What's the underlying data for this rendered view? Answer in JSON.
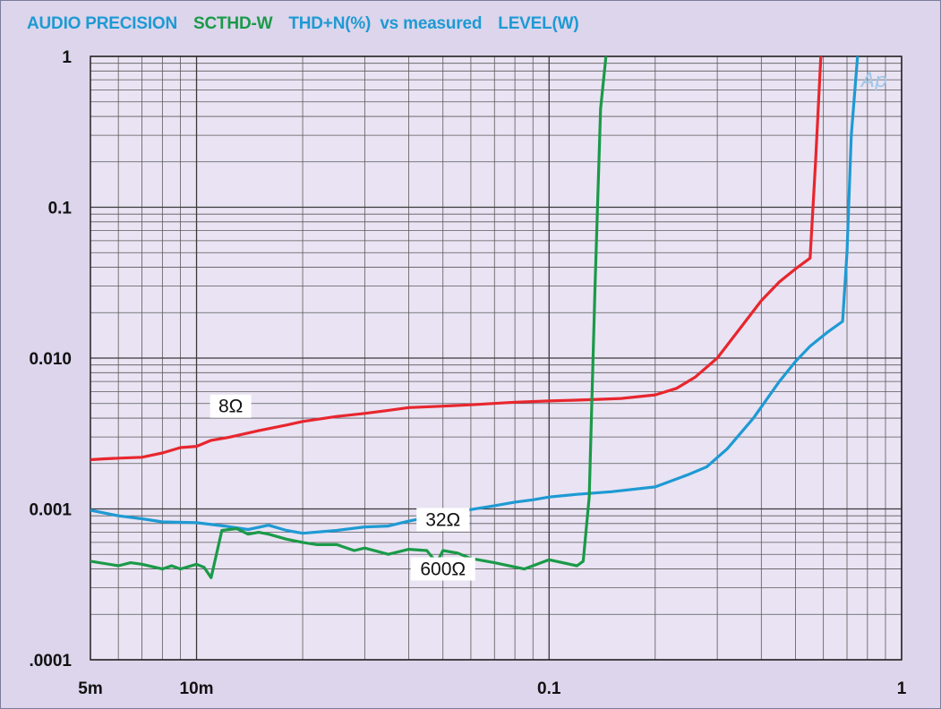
{
  "title": {
    "part1": "AUDIO PRECISION",
    "part2": "SCTHD-W",
    "part3": "THD+N(%)  vs measured",
    "part4": "LEVEL(W)",
    "color_main": "#1e9ad3",
    "color_accent": "#1a9a48"
  },
  "watermark": "Ap",
  "chart_data": {
    "type": "line",
    "xscale": "log",
    "yscale": "log",
    "xlim": [
      0.005,
      1
    ],
    "ylim": [
      0.0001,
      1
    ],
    "x_tick_labels": [
      {
        "value": 0.005,
        "label": "5m"
      },
      {
        "value": 0.01,
        "label": "10m"
      },
      {
        "value": 0.1,
        "label": "0.1"
      },
      {
        "value": 1,
        "label": "1"
      }
    ],
    "y_tick_labels": [
      {
        "value": 1,
        "label": "1"
      },
      {
        "value": 0.1,
        "label": "0.1"
      },
      {
        "value": 0.01,
        "label": "0.010"
      },
      {
        "value": 0.001,
        "label": "0.001"
      },
      {
        "value": 0.0001,
        "label": ".0001"
      }
    ],
    "grid": true,
    "series": [
      {
        "name": "8Ω",
        "color": "#e8262e",
        "points": [
          [
            0.005,
            0.00212
          ],
          [
            0.0055,
            0.00215
          ],
          [
            0.006,
            0.00217
          ],
          [
            0.007,
            0.0022
          ],
          [
            0.008,
            0.00235
          ],
          [
            0.009,
            0.00255
          ],
          [
            0.01,
            0.0026
          ],
          [
            0.011,
            0.00285
          ],
          [
            0.0125,
            0.003
          ],
          [
            0.015,
            0.0033
          ],
          [
            0.018,
            0.0036
          ],
          [
            0.02,
            0.0038
          ],
          [
            0.025,
            0.0041
          ],
          [
            0.03,
            0.0043
          ],
          [
            0.035,
            0.0045
          ],
          [
            0.04,
            0.0047
          ],
          [
            0.05,
            0.0048
          ],
          [
            0.06,
            0.0049
          ],
          [
            0.08,
            0.0051
          ],
          [
            0.1,
            0.0052
          ],
          [
            0.13,
            0.0053
          ],
          [
            0.16,
            0.0054
          ],
          [
            0.2,
            0.0057
          ],
          [
            0.23,
            0.0063
          ],
          [
            0.26,
            0.0075
          ],
          [
            0.3,
            0.01
          ],
          [
            0.35,
            0.016
          ],
          [
            0.4,
            0.024
          ],
          [
            0.45,
            0.032
          ],
          [
            0.5,
            0.039
          ],
          [
            0.55,
            0.046
          ],
          [
            0.57,
            0.2
          ],
          [
            0.59,
            1
          ]
        ],
        "label_at": [
          0.0125,
          0.0048
        ]
      },
      {
        "name": "32Ω",
        "color": "#1e9ad3",
        "points": [
          [
            0.005,
            0.00098
          ],
          [
            0.006,
            0.0009
          ],
          [
            0.007,
            0.00086
          ],
          [
            0.008,
            0.00082
          ],
          [
            0.01,
            0.00081
          ],
          [
            0.012,
            0.00077
          ],
          [
            0.014,
            0.00073
          ],
          [
            0.016,
            0.00078
          ],
          [
            0.018,
            0.00072
          ],
          [
            0.02,
            0.00069
          ],
          [
            0.025,
            0.00072
          ],
          [
            0.03,
            0.00076
          ],
          [
            0.035,
            0.00077
          ],
          [
            0.04,
            0.00083
          ],
          [
            0.05,
            0.00092
          ],
          [
            0.06,
            0.00099
          ],
          [
            0.07,
            0.00105
          ],
          [
            0.08,
            0.00111
          ],
          [
            0.09,
            0.00115
          ],
          [
            0.1,
            0.0012
          ],
          [
            0.12,
            0.00125
          ],
          [
            0.15,
            0.0013
          ],
          [
            0.2,
            0.0014
          ],
          [
            0.25,
            0.0017
          ],
          [
            0.28,
            0.0019
          ],
          [
            0.32,
            0.0025
          ],
          [
            0.38,
            0.004
          ],
          [
            0.45,
            0.007
          ],
          [
            0.5,
            0.0095
          ],
          [
            0.55,
            0.012
          ],
          [
            0.62,
            0.015
          ],
          [
            0.68,
            0.0175
          ],
          [
            0.7,
            0.05
          ],
          [
            0.72,
            0.3
          ],
          [
            0.75,
            1
          ]
        ],
        "label_at": [
          0.05,
          0.00085
        ]
      },
      {
        "name": "600Ω",
        "color": "#1a9a48",
        "points": [
          [
            0.005,
            0.00045
          ],
          [
            0.006,
            0.00042
          ],
          [
            0.0065,
            0.00044
          ],
          [
            0.007,
            0.00043
          ],
          [
            0.008,
            0.0004
          ],
          [
            0.0085,
            0.00042
          ],
          [
            0.009,
            0.0004
          ],
          [
            0.01,
            0.00043
          ],
          [
            0.0105,
            0.00041
          ],
          [
            0.011,
            0.00035
          ],
          [
            0.0118,
            0.00072
          ],
          [
            0.013,
            0.00074
          ],
          [
            0.014,
            0.00068
          ],
          [
            0.015,
            0.0007
          ],
          [
            0.016,
            0.00068
          ],
          [
            0.018,
            0.00063
          ],
          [
            0.02,
            0.0006
          ],
          [
            0.022,
            0.00058
          ],
          [
            0.025,
            0.00058
          ],
          [
            0.028,
            0.00053
          ],
          [
            0.03,
            0.00055
          ],
          [
            0.035,
            0.0005
          ],
          [
            0.04,
            0.00054
          ],
          [
            0.045,
            0.00053
          ],
          [
            0.048,
            0.00044
          ],
          [
            0.05,
            0.00053
          ],
          [
            0.055,
            0.00051
          ],
          [
            0.06,
            0.00047
          ],
          [
            0.07,
            0.00044
          ],
          [
            0.085,
            0.0004
          ],
          [
            0.1,
            0.00046
          ],
          [
            0.12,
            0.00042
          ],
          [
            0.125,
            0.00045
          ],
          [
            0.13,
            0.0012
          ],
          [
            0.135,
            0.03
          ],
          [
            0.14,
            0.45
          ],
          [
            0.145,
            1
          ]
        ],
        "label_at": [
          0.05,
          0.0004
        ]
      }
    ]
  }
}
